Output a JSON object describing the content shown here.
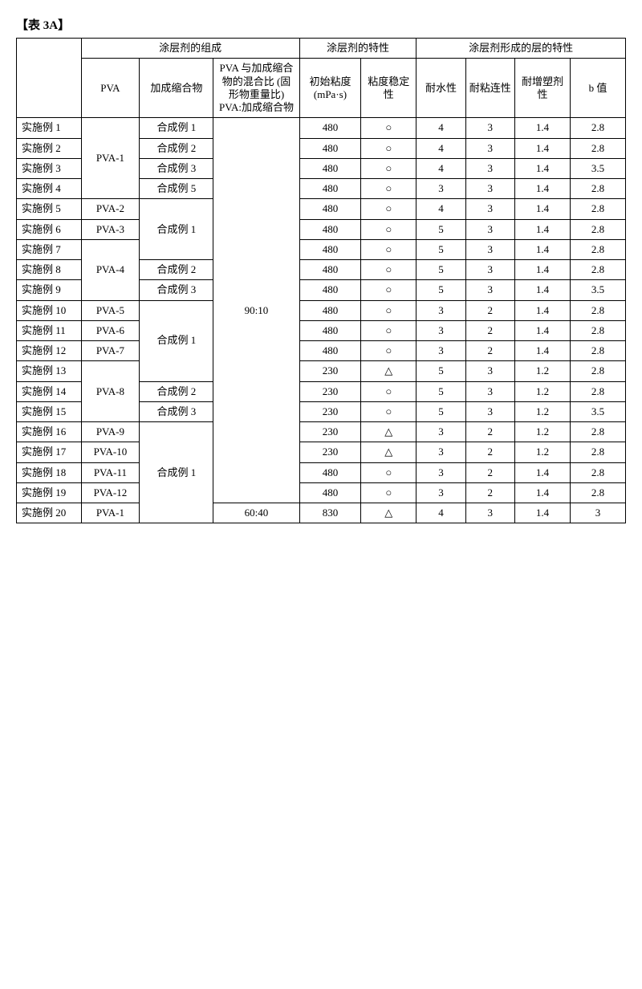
{
  "caption": "【表 3A】",
  "headers": {
    "group_composition": "涂层剂的组成",
    "group_coating_prop": "涂层剂的特性",
    "group_layer_prop": "涂层剂形成的层的特性",
    "blank": "",
    "pva": "PVA",
    "addition": "加成缩合物",
    "ratio": "PVA 与加成缩合物的混合比\n(固形物重量比)\nPVA:加成缩合物",
    "viscosity": "初始粘度\n(mPa·s)",
    "stability": "粘度稳定性",
    "water_res": "耐水性",
    "adhesion": "耐粘连性",
    "plasticizer": "耐增塑剂性",
    "bvalue": "b 值"
  },
  "rowLabelPrefix": "实施例 ",
  "additionPrefix": "合成例 ",
  "pvaGroups": [
    {
      "label": "PVA-1",
      "span": 4
    },
    {
      "label": "PVA-2",
      "span": 1
    },
    {
      "label": "PVA-3",
      "span": 1
    },
    {
      "label": "PVA-4",
      "span": 3
    },
    {
      "label": "PVA-5",
      "span": 1
    },
    {
      "label": "PVA-6",
      "span": 1
    },
    {
      "label": "PVA-7",
      "span": 1
    },
    {
      "label": "PVA-8",
      "span": 3
    },
    {
      "label": "PVA-9",
      "span": 1
    },
    {
      "label": "PVA-10",
      "span": 1
    },
    {
      "label": "PVA-11",
      "span": 1
    },
    {
      "label": "PVA-12",
      "span": 1
    },
    {
      "label": "PVA-1",
      "span": 1
    }
  ],
  "additionGroups": [
    {
      "num": "1",
      "span": 1
    },
    {
      "num": "2",
      "span": 1
    },
    {
      "num": "3",
      "span": 1
    },
    {
      "num": "5",
      "span": 1
    },
    {
      "num": "1",
      "span": 3
    },
    {
      "num": "2",
      "span": 1
    },
    {
      "num": "3",
      "span": 1
    },
    {
      "num": "1",
      "span": 4
    },
    {
      "num": "2",
      "span": 1
    },
    {
      "num": "3",
      "span": 1
    },
    {
      "num": "1",
      "span": 5
    }
  ],
  "ratioGroups": [
    {
      "label": "90:10",
      "span": 19
    },
    {
      "label": "60:40",
      "span": 1
    }
  ],
  "rows": [
    {
      "n": 1,
      "visc": "480",
      "stab": "○",
      "wres": "4",
      "adh": "3",
      "plas": "1.4",
      "bval": "2.8"
    },
    {
      "n": 2,
      "visc": "480",
      "stab": "○",
      "wres": "4",
      "adh": "3",
      "plas": "1.4",
      "bval": "2.8"
    },
    {
      "n": 3,
      "visc": "480",
      "stab": "○",
      "wres": "4",
      "adh": "3",
      "plas": "1.4",
      "bval": "3.5"
    },
    {
      "n": 4,
      "visc": "480",
      "stab": "○",
      "wres": "3",
      "adh": "3",
      "plas": "1.4",
      "bval": "2.8"
    },
    {
      "n": 5,
      "visc": "480",
      "stab": "○",
      "wres": "4",
      "adh": "3",
      "plas": "1.4",
      "bval": "2.8"
    },
    {
      "n": 6,
      "visc": "480",
      "stab": "○",
      "wres": "5",
      "adh": "3",
      "plas": "1.4",
      "bval": "2.8"
    },
    {
      "n": 7,
      "visc": "480",
      "stab": "○",
      "wres": "5",
      "adh": "3",
      "plas": "1.4",
      "bval": "2.8"
    },
    {
      "n": 8,
      "visc": "480",
      "stab": "○",
      "wres": "5",
      "adh": "3",
      "plas": "1.4",
      "bval": "2.8"
    },
    {
      "n": 9,
      "visc": "480",
      "stab": "○",
      "wres": "5",
      "adh": "3",
      "plas": "1.4",
      "bval": "3.5"
    },
    {
      "n": 10,
      "visc": "480",
      "stab": "○",
      "wres": "3",
      "adh": "2",
      "plas": "1.4",
      "bval": "2.8"
    },
    {
      "n": 11,
      "visc": "480",
      "stab": "○",
      "wres": "3",
      "adh": "2",
      "plas": "1.4",
      "bval": "2.8"
    },
    {
      "n": 12,
      "visc": "480",
      "stab": "○",
      "wres": "3",
      "adh": "2",
      "plas": "1.4",
      "bval": "2.8"
    },
    {
      "n": 13,
      "visc": "230",
      "stab": "△",
      "wres": "5",
      "adh": "3",
      "plas": "1.2",
      "bval": "2.8"
    },
    {
      "n": 14,
      "visc": "230",
      "stab": "○",
      "wres": "5",
      "adh": "3",
      "plas": "1.2",
      "bval": "2.8"
    },
    {
      "n": 15,
      "visc": "230",
      "stab": "○",
      "wres": "5",
      "adh": "3",
      "plas": "1.2",
      "bval": "3.5"
    },
    {
      "n": 16,
      "visc": "230",
      "stab": "△",
      "wres": "3",
      "adh": "2",
      "plas": "1.2",
      "bval": "2.8"
    },
    {
      "n": 17,
      "visc": "230",
      "stab": "△",
      "wres": "3",
      "adh": "2",
      "plas": "1.2",
      "bval": "2.8"
    },
    {
      "n": 18,
      "visc": "480",
      "stab": "○",
      "wres": "3",
      "adh": "2",
      "plas": "1.4",
      "bval": "2.8"
    },
    {
      "n": 19,
      "visc": "480",
      "stab": "○",
      "wres": "3",
      "adh": "2",
      "plas": "1.4",
      "bval": "2.8"
    },
    {
      "n": 20,
      "visc": "830",
      "stab": "△",
      "wres": "4",
      "adh": "3",
      "plas": "1.4",
      "bval": "3"
    }
  ]
}
